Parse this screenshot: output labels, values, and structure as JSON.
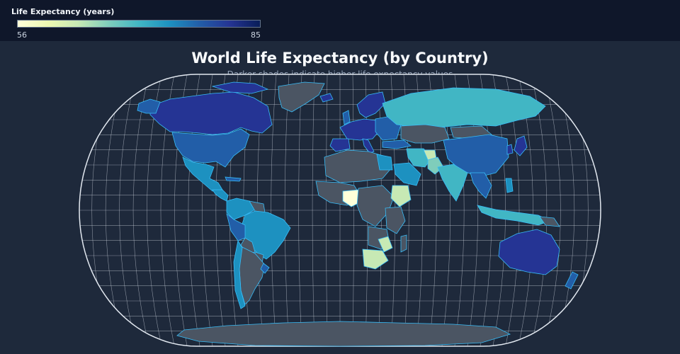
{
  "legend": {
    "title": "Life Expectancy (years)",
    "min_label": "56",
    "max_label": "85",
    "colorscale": [
      "#ffffd9",
      "#edf8b1",
      "#c7e9b4",
      "#7fcdbb",
      "#41b6c4",
      "#1d91c0",
      "#225ea8",
      "#253494",
      "#081d58"
    ]
  },
  "map": {
    "title": "World Life Expectancy (by Country)",
    "subtitle": "Darker shades indicate higher life expectancy values",
    "projection": "robinson",
    "no_data_color": "#4b5563",
    "border_color": "#38bdf8",
    "ocean_color": "#1e293b",
    "graticule": true
  },
  "colors": {
    "background": "#1e293b",
    "header": "#0f172a",
    "text": "#f8fafc",
    "muted_text": "#94a3b8"
  }
}
